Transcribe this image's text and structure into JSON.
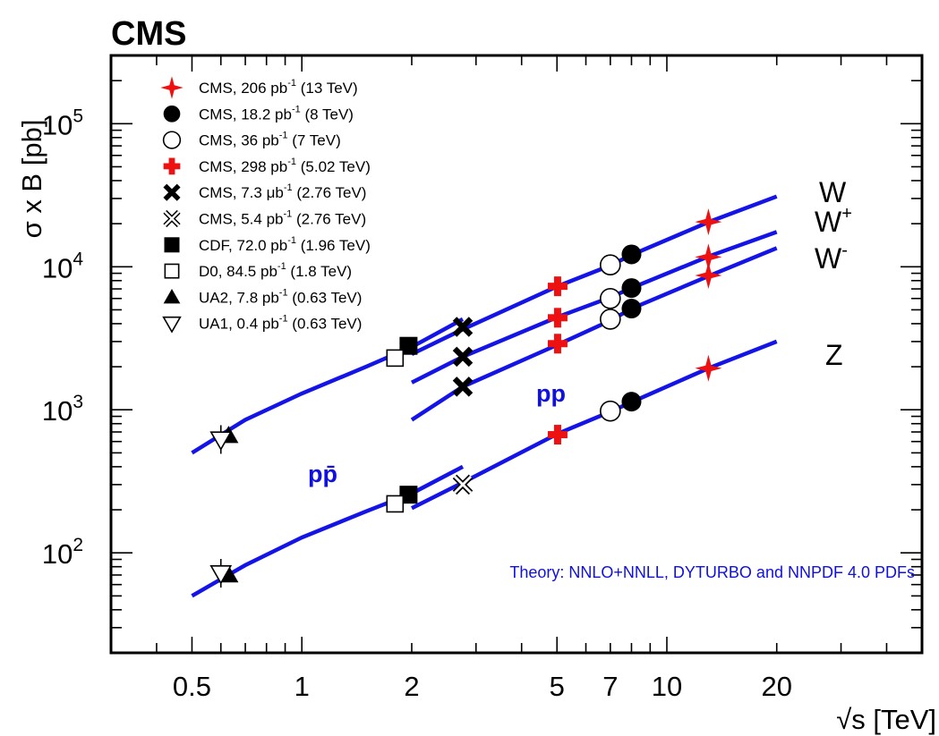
{
  "title": "CMS",
  "y_axis_title": "σ x B [pb]",
  "x_axis_title": "√s [TeV]",
  "x_tick_labels": [
    "0.5",
    "1",
    "2",
    "5",
    "7",
    "10",
    "20"
  ],
  "y_tick_labels": [
    {
      "base": "10",
      "exp": "2"
    },
    {
      "base": "10",
      "exp": "3"
    },
    {
      "base": "10",
      "exp": "4"
    },
    {
      "base": "10",
      "exp": "5"
    }
  ],
  "boson_labels": [
    {
      "text": "W",
      "sup": ""
    },
    {
      "text": "W",
      "sup": "+"
    },
    {
      "text": "W",
      "sup": "-"
    },
    {
      "text": "Z",
      "sup": ""
    }
  ],
  "collider_labels": [
    "pp",
    "pp̄"
  ],
  "theory_note": "Theory: NNLO+NNLL, DYTURBO and NNPDF 4.0 PDFs",
  "legend": [
    {
      "marker": "star4-red",
      "pre": "CMS, 206 pb",
      "sup": "-1",
      "post": " (13 TeV)"
    },
    {
      "marker": "circle-filled",
      "pre": "CMS, 18.2 pb",
      "sup": "-1",
      "post": " (8 TeV)"
    },
    {
      "marker": "circle-open",
      "pre": "CMS, 36 pb",
      "sup": "-1",
      "post": " (7 TeV)"
    },
    {
      "marker": "cross-red",
      "pre": "CMS, 298 pb",
      "sup": "-1",
      "post": " (5.02 TeV)"
    },
    {
      "marker": "x-filled",
      "pre": "CMS, 7.3 μb",
      "sup": "-1",
      "post": " (2.76 TeV)"
    },
    {
      "marker": "x-open",
      "pre": "CMS, 5.4 pb",
      "sup": "-1",
      "post": " (2.76 TeV)"
    },
    {
      "marker": "square-filled",
      "pre": "CDF, 72.0 pb",
      "sup": "-1",
      "post": " (1.96 TeV)"
    },
    {
      "marker": "square-open",
      "pre": "D0, 84.5 pb",
      "sup": "-1",
      "post": " (1.8 TeV)"
    },
    {
      "marker": "triangle-up-filled",
      "pre": "UA2, 7.8 pb",
      "sup": "-1",
      "post": " (0.63 TeV)"
    },
    {
      "marker": "triangle-down-open",
      "pre": "UA1, 0.4 pb",
      "sup": "-1",
      "post": " (0.63 TeV)"
    }
  ],
  "colors": {
    "theory": "#1414e6",
    "cms_13": "#ee1111",
    "cms_502": "#ee1111",
    "axis": "#000000"
  },
  "chart_data": {
    "type": "scatter",
    "x_scale": "log",
    "y_scale": "log",
    "xlim": [
      0.3,
      50
    ],
    "ylim": [
      20,
      300000
    ],
    "grid": false,
    "legend_position": "top-left",
    "theory_curves": [
      {
        "name": "W",
        "segment": "ppbar",
        "x": [
          0.5,
          0.7,
          1.0,
          1.5,
          2.0,
          2.76
        ],
        "y": [
          500,
          850,
          1300,
          2000,
          2750,
          4300
        ]
      },
      {
        "name": "W",
        "segment": "pp",
        "x": [
          2.0,
          2.76,
          5.02,
          7.0,
          8.0,
          13.0,
          20.0
        ],
        "y": [
          2450,
          3650,
          7300,
          10200,
          12100,
          20500,
          31000
        ]
      },
      {
        "name": "W+",
        "segment": "pp",
        "x": [
          2.0,
          2.76,
          5.02,
          7.0,
          8.0,
          13.0,
          20.0
        ],
        "y": [
          1550,
          2350,
          4450,
          6100,
          7100,
          11800,
          17500
        ]
      },
      {
        "name": "W-",
        "segment": "pp",
        "x": [
          2.0,
          2.76,
          5.02,
          7.0,
          8.0,
          13.0,
          20.0
        ],
        "y": [
          850,
          1450,
          2850,
          4200,
          5100,
          8600,
          13500
        ]
      },
      {
        "name": "Z",
        "segment": "ppbar",
        "x": [
          0.5,
          0.7,
          1.0,
          1.5,
          2.0,
          2.76
        ],
        "y": [
          50,
          82,
          128,
          195,
          260,
          400
        ]
      },
      {
        "name": "Z",
        "segment": "pp",
        "x": [
          2.0,
          2.76,
          5.02,
          7.0,
          8.0,
          13.0,
          20.0
        ],
        "y": [
          205,
          310,
          680,
          970,
          1130,
          1950,
          3000
        ]
      }
    ],
    "points": [
      {
        "exp": "CMS 13 TeV",
        "marker": "star4-red",
        "x": 13.0,
        "y": [
          20600,
          11700,
          8700,
          1950
        ]
      },
      {
        "exp": "CMS 8 TeV",
        "marker": "circle-filled",
        "x": 8.0,
        "y": [
          12200,
          7100,
          5100,
          1140
        ]
      },
      {
        "exp": "CMS 7 TeV",
        "marker": "circle-open",
        "x": 7.0,
        "y": [
          10300,
          6000,
          4300,
          980
        ]
      },
      {
        "exp": "CMS 5.02 TeV",
        "marker": "cross-red",
        "x": 5.02,
        "y": [
          7300,
          4400,
          2900,
          670
        ]
      },
      {
        "exp": "CMS 2.76 TeV (7.3 μb-1)",
        "marker": "x-filled",
        "x": 2.76,
        "y": [
          3800,
          2350,
          1450
        ]
      },
      {
        "exp": "CMS 2.76 TeV (5.4 pb-1)",
        "marker": "x-open",
        "x": 2.76,
        "y": [
          300
        ]
      },
      {
        "exp": "CDF 1.96 TeV",
        "marker": "square-filled",
        "x": 1.96,
        "y": [
          2800,
          255
        ]
      },
      {
        "exp": "D0 1.8 TeV",
        "marker": "square-open",
        "x": 1.8,
        "y": [
          2300,
          220
        ]
      },
      {
        "exp": "UA2 0.63 TeV",
        "marker": "triangle-up-filled",
        "x": 0.63,
        "y": [
          660,
          70
        ]
      },
      {
        "exp": "UA1 0.63 TeV",
        "marker": "triangle-down-open",
        "x": 0.6,
        "y": [
          620,
          72
        ]
      }
    ]
  }
}
